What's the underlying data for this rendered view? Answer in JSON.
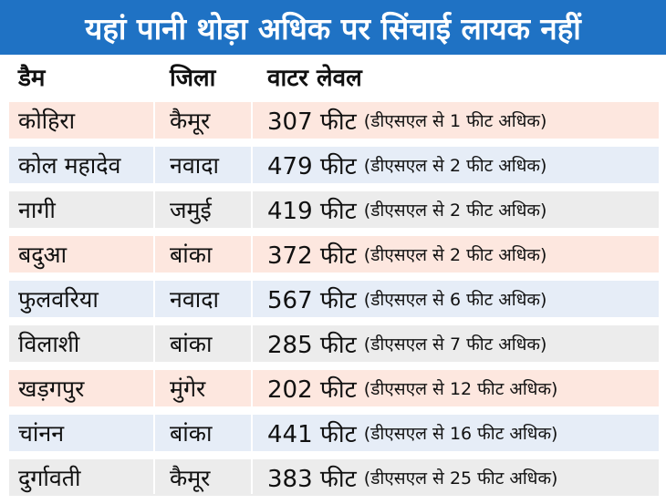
{
  "title": "यहां पानी थोड़ा अधिक पर सिंचाई लायक नहीं",
  "headers": [
    "डैम",
    "जिला",
    "वाटर लेवल"
  ],
  "row_colors": [
    "#fde7df",
    "#e6edf7",
    "#ececec"
  ],
  "rows": [
    {
      "dam": "कोहिरा",
      "district": "कैमूर",
      "level": "307 फीट",
      "note": "(डीएसएल से 1 फीट अधिक)"
    },
    {
      "dam": "कोल महादेव",
      "district": "नवादा",
      "level": "479 फीट",
      "note": "(डीएसएल से 2 फीट अधिक)"
    },
    {
      "dam": "नागी",
      "district": "जमुई",
      "level": "419 फीट",
      "note": "(डीएसएल से 2 फीट अधिक)"
    },
    {
      "dam": "बदुआ",
      "district": "बांका",
      "level": "372 फीट",
      "note": "(डीएसएल से 2 फीट अधिक)"
    },
    {
      "dam": "फुलवरिया",
      "district": "नवादा",
      "level": "567 फीट",
      "note": "(डीएसएल से 6 फीट अधिक)"
    },
    {
      "dam": "विलाशी",
      "district": "बांका",
      "level": "285 फीट",
      "note": "(डीएसएल से 7 फीट अधिक)"
    },
    {
      "dam": "खड़गपुर",
      "district": "मुंगेर",
      "level": "202 फीट",
      "note": "(डीएसएल से 12 फीट अधिक)"
    },
    {
      "dam": "चांनन",
      "district": "बांका",
      "level": "441 फीट",
      "note": "(डीएसएल से 16 फीट अधिक)"
    },
    {
      "dam": "दुर्गावती",
      "district": "कैमूर",
      "level": "383 फीट",
      "note": "(डीएसएल से 25 फीट अधिक)"
    }
  ]
}
